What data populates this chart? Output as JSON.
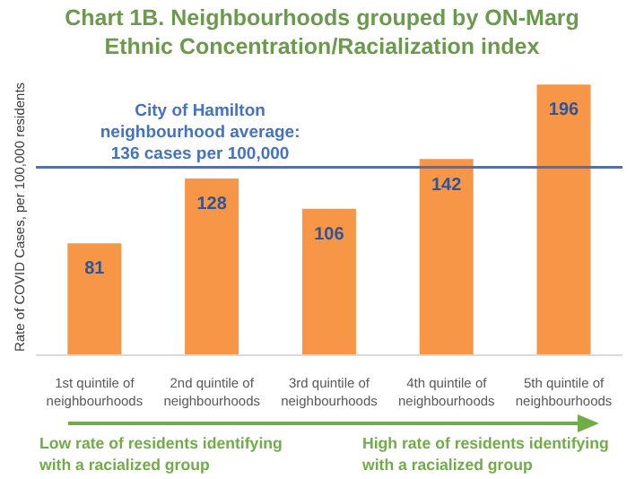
{
  "chart_data": {
    "type": "bar",
    "title": "Chart 1B. Neighbourhoods grouped by ON-Marg Ethnic Concentration/Racialization index",
    "ylabel": "Rate of COVID Cases, per 100,000 residents",
    "categories": [
      "1st quintile of neighbourhoods",
      "2nd quintile of neighbourhoods",
      "3rd quintile of neighbourhoods",
      "4th quintile of neighbourhoods",
      "5th quintile of neighbourhoods"
    ],
    "values": [
      81,
      128,
      106,
      142,
      196
    ],
    "color": "#f79646",
    "data_labels": true,
    "ylim": [
      0,
      200
    ],
    "tick_labels": "x",
    "ref_lines": [
      {
        "axis": "y",
        "value": 136,
        "label": "City of Hamilton\nneighbourhood average:\n136 cases per 100,000",
        "color": "#4472c4"
      }
    ],
    "annotations": [
      "Low rate of residents identifying with a racialized group",
      "High rate of residents identifying with a racialized group"
    ]
  }
}
